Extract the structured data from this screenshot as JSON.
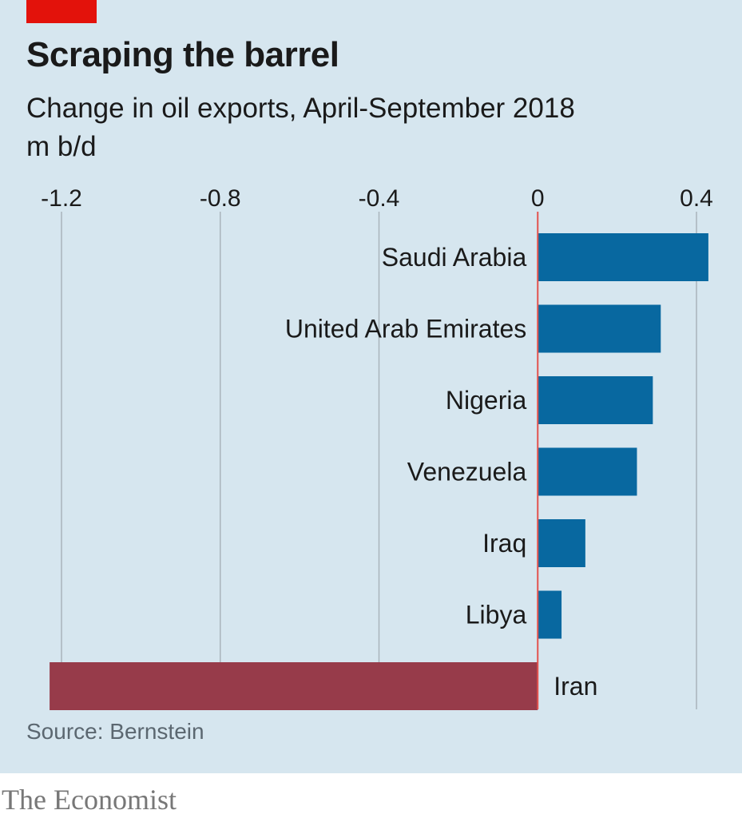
{
  "header": {
    "title": "Scraping the barrel",
    "subtitle": "Change in oil exports, April-September 2018",
    "unit": "m b/d"
  },
  "footer": {
    "source": "Source: Bernstein",
    "brand": "The Economist"
  },
  "colors": {
    "background": "#d6e6ef",
    "positive_bar": "#0868a0",
    "negative_bar": "#973b4a",
    "zero_line": "#e3524e",
    "gridline": "#a9b4bb",
    "accent_tag": "#e3120b"
  },
  "chart_data": {
    "type": "bar",
    "orientation": "horizontal",
    "title": "Scraping the barrel",
    "subtitle": "Change in oil exports, April-September 2018",
    "xlabel": "m b/d",
    "ylabel": "",
    "xlim": [
      -1.2,
      0.4
    ],
    "xticks": [
      -1.2,
      -0.8,
      -0.4,
      0,
      0.4
    ],
    "xtick_labels": [
      "-1.2",
      "-0.8",
      "-0.4",
      "0",
      "0.4"
    ],
    "grid": true,
    "legend": "none",
    "categories": [
      "Saudi Arabia",
      "United Arab Emirates",
      "Nigeria",
      "Venezuela",
      "Iraq",
      "Libya",
      "Iran"
    ],
    "values": [
      0.43,
      0.31,
      0.29,
      0.25,
      0.12,
      0.06,
      -1.23
    ],
    "source": "Source: Bernstein"
  }
}
